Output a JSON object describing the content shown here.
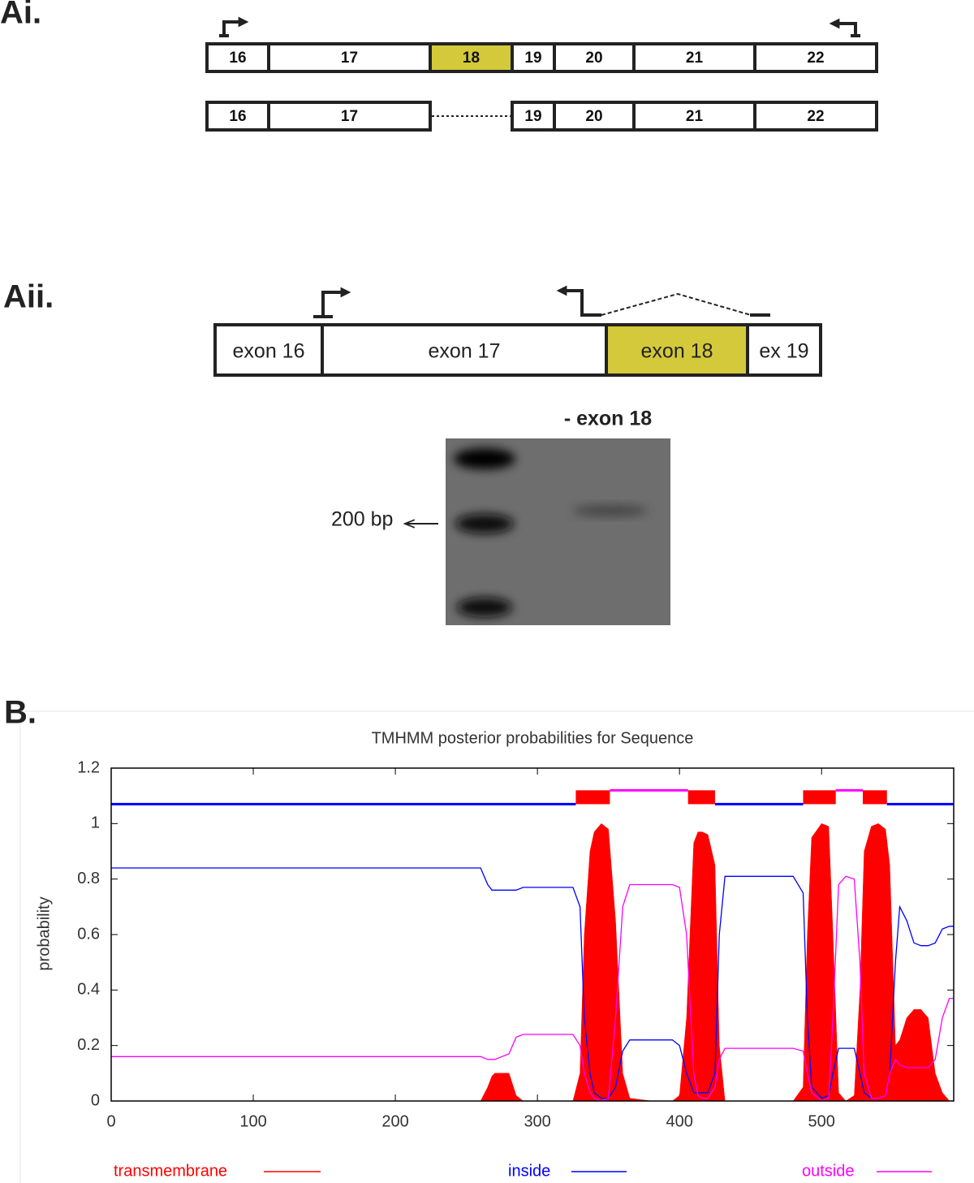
{
  "panels": {
    "Ai": {
      "label": "Ai.",
      "rows": [
        [
          "16",
          "17",
          "18",
          "19",
          "20",
          "21",
          "22"
        ],
        [
          "16",
          "17",
          "19",
          "20",
          "21",
          "22"
        ]
      ]
    },
    "Aii": {
      "label": "Aii.",
      "exons": [
        "exon 16",
        "exon 17",
        "exon 18",
        "ex 19"
      ],
      "gel_title": "- exon 18",
      "marker": "200 bp"
    },
    "B": {
      "label": "B."
    }
  },
  "chart_data": {
    "type": "line",
    "title": "TMHMM posterior probabilities for Sequence",
    "y_label": "probability",
    "xlim": [
      0,
      593
    ],
    "xticks": [
      0,
      100,
      200,
      300,
      400,
      500
    ],
    "ylim": [
      0,
      1.2
    ],
    "yticks": [
      0,
      0.2,
      0.4,
      0.6,
      0.8,
      1,
      1.2
    ],
    "grid": false,
    "x": [
      0,
      260,
      265,
      268,
      270,
      280,
      285,
      290,
      325,
      330,
      333,
      337,
      340,
      345,
      350,
      355,
      360,
      365,
      380,
      395,
      400,
      405,
      410,
      413,
      416,
      420,
      425,
      428,
      432,
      440,
      480,
      487,
      490,
      493,
      500,
      505,
      508,
      512,
      517,
      523,
      527,
      530,
      535,
      540,
      545,
      548,
      552,
      555,
      560,
      565,
      570,
      575,
      580,
      585,
      590,
      593
    ],
    "series": [
      {
        "name": "transmembrane",
        "color": "#ff0000",
        "fill": true,
        "values": [
          0,
          0,
          0.05,
          0.09,
          0.1,
          0.1,
          0.02,
          0,
          0,
          0.1,
          0.6,
          0.9,
          0.97,
          1,
          0.98,
          0.65,
          0.1,
          0.01,
          0,
          0,
          0.02,
          0.3,
          0.93,
          0.97,
          0.97,
          0.96,
          0.85,
          0.2,
          0,
          0,
          0,
          0.05,
          0.6,
          0.95,
          1,
          0.99,
          0.6,
          0.03,
          0,
          0.02,
          0.4,
          0.9,
          0.99,
          1,
          0.98,
          0.85,
          0.2,
          0.22,
          0.3,
          0.33,
          0.33,
          0.3,
          0.1,
          0.03,
          0,
          0
        ]
      },
      {
        "name": "inside",
        "color": "#0000ff",
        "fill": false,
        "values": [
          0.84,
          0.84,
          0.78,
          0.76,
          0.76,
          0.76,
          0.76,
          0.77,
          0.77,
          0.7,
          0.3,
          0.1,
          0.03,
          0.01,
          0.01,
          0.05,
          0.18,
          0.22,
          0.22,
          0.22,
          0.2,
          0.1,
          0.03,
          0.03,
          0.03,
          0.03,
          0.1,
          0.6,
          0.81,
          0.81,
          0.81,
          0.75,
          0.3,
          0.05,
          0.01,
          0.02,
          0.1,
          0.19,
          0.19,
          0.19,
          0.1,
          0.03,
          0.01,
          0.01,
          0.02,
          0.1,
          0.5,
          0.7,
          0.65,
          0.57,
          0.56,
          0.56,
          0.57,
          0.62,
          0.63,
          0.63
        ]
      },
      {
        "name": "outside",
        "color": "#ff00ff",
        "fill": false,
        "values": [
          0.16,
          0.16,
          0.15,
          0.15,
          0.15,
          0.17,
          0.23,
          0.24,
          0.24,
          0.2,
          0.1,
          0.03,
          0.01,
          0,
          0.01,
          0.3,
          0.7,
          0.78,
          0.78,
          0.78,
          0.77,
          0.6,
          0.1,
          0.02,
          0.01,
          0.01,
          0.05,
          0.15,
          0.19,
          0.19,
          0.19,
          0.18,
          0.1,
          0.03,
          0,
          0.01,
          0.3,
          0.78,
          0.81,
          0.8,
          0.5,
          0.1,
          0.01,
          0.01,
          0.02,
          0.1,
          0.15,
          0.13,
          0.12,
          0.12,
          0.12,
          0.12,
          0.15,
          0.3,
          0.37,
          0.37
        ]
      }
    ],
    "topology_levels": {
      "inside": 1.07,
      "outside": 1.12
    },
    "topology": [
      {
        "name": "inside",
        "start": 0,
        "end": 327
      },
      {
        "name": "transmembrane",
        "start": 327,
        "end": 351
      },
      {
        "name": "outside",
        "start": 351,
        "end": 406
      },
      {
        "name": "transmembrane",
        "start": 406,
        "end": 425
      },
      {
        "name": "inside",
        "start": 425,
        "end": 487
      },
      {
        "name": "transmembrane",
        "start": 487,
        "end": 510
      },
      {
        "name": "outside",
        "start": 510,
        "end": 529
      },
      {
        "name": "transmembrane",
        "start": 529,
        "end": 546
      },
      {
        "name": "inside",
        "start": 546,
        "end": 593
      }
    ]
  }
}
